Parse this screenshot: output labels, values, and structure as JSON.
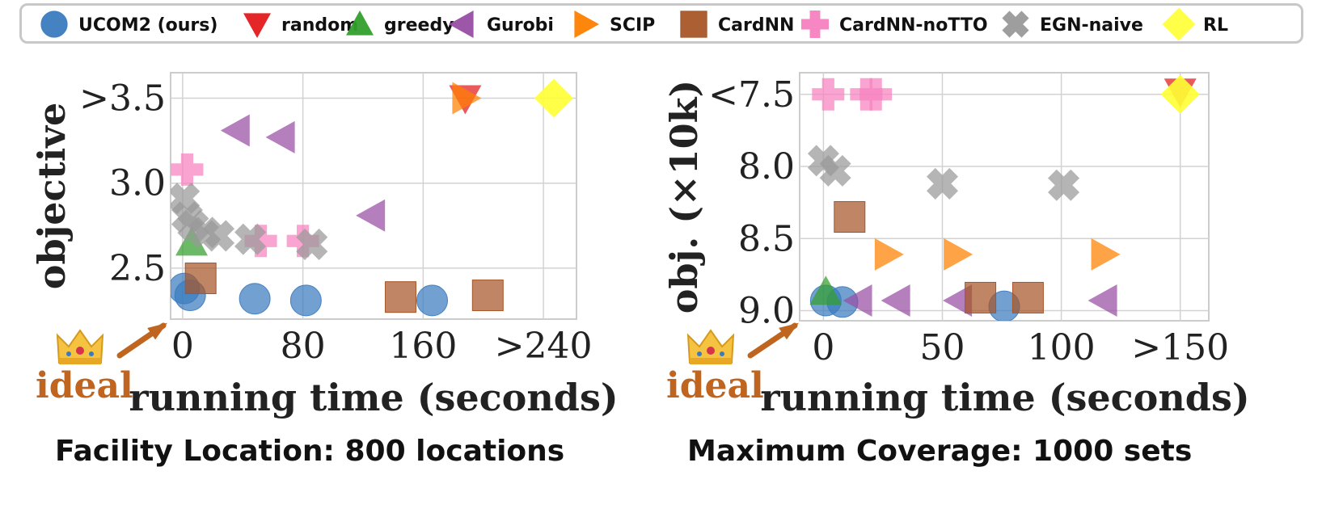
{
  "legend": [
    {
      "key": "ucom2",
      "label": "UCOM2 (ours)",
      "marker": "circle",
      "color": "#3a7bbf"
    },
    {
      "key": "random",
      "label": "random",
      "marker": "triangle-down",
      "color": "#e31a1c"
    },
    {
      "key": "greedy",
      "label": "greedy",
      "marker": "triangle-up",
      "color": "#33a02c"
    },
    {
      "key": "gurobi",
      "label": "Gurobi",
      "marker": "triangle-left",
      "color": "#984ea3"
    },
    {
      "key": "scip",
      "label": "SCIP",
      "marker": "triangle-right",
      "color": "#ff7f00"
    },
    {
      "key": "cardnn",
      "label": "CardNN",
      "marker": "square",
      "color": "#a65628"
    },
    {
      "key": "cardnn_nott",
      "label": "CardNN-noTTO",
      "marker": "plus",
      "color": "#f781bf"
    },
    {
      "key": "egn",
      "label": "EGN-naive",
      "marker": "x",
      "color": "#999999"
    },
    {
      "key": "rl",
      "label": "RL",
      "marker": "diamond",
      "color": "#ffff33"
    }
  ],
  "chart_data": [
    {
      "type": "scatter",
      "caption": "Facility Location: 800 locations",
      "xlabel": "running time (seconds)",
      "ylabel": "objective",
      "ideal_label": "ideal",
      "xlim": [
        -8,
        262
      ],
      "ylim": [
        2.2,
        3.65
      ],
      "y_inverted": false,
      "xticks": [
        0,
        80,
        160,
        240
      ],
      "xtick_labels": [
        "0",
        "80",
        "160",
        ">240"
      ],
      "yticks": [
        2.5,
        3.0,
        3.5
      ],
      "ytick_labels": [
        "2.5",
        "3.0",
        ">3.5"
      ],
      "grid": true,
      "series": [
        {
          "key": "ucom2",
          "points": [
            [
              1,
              2.38
            ],
            [
              5,
              2.34
            ],
            [
              48,
              2.32
            ],
            [
              82,
              2.31
            ],
            [
              166,
              2.31
            ]
          ]
        },
        {
          "key": "random",
          "points": [
            [
              188,
              3.5
            ]
          ]
        },
        {
          "key": "greedy",
          "points": [
            [
              6,
              2.65
            ]
          ]
        },
        {
          "key": "gurobi",
          "points": [
            [
              36,
              3.31
            ],
            [
              66,
              3.27
            ],
            [
              126,
              2.81
            ]
          ]
        },
        {
          "key": "scip",
          "points": [
            [
              188,
              3.5
            ]
          ]
        },
        {
          "key": "cardnn",
          "points": [
            [
              12,
              2.44
            ],
            [
              145,
              2.33
            ],
            [
              203,
              2.34
            ]
          ]
        },
        {
          "key": "cardnn_nott",
          "points": [
            [
              3,
              3.08
            ],
            [
              52,
              2.66
            ],
            [
              80,
              2.66
            ]
          ]
        },
        {
          "key": "egn",
          "points": [
            [
              1,
              2.91
            ],
            [
              3,
              2.8
            ],
            [
              7,
              2.75
            ],
            [
              15,
              2.71
            ],
            [
              24,
              2.69
            ],
            [
              45,
              2.67
            ],
            [
              86,
              2.64
            ]
          ]
        },
        {
          "key": "rl",
          "points": [
            [
              247,
              3.5
            ]
          ]
        }
      ]
    },
    {
      "type": "scatter",
      "caption": "Maximum Coverage: 1000 sets",
      "xlabel": "running time (seconds)",
      "ylabel": "obj. (×10k)",
      "ideal_label": "ideal",
      "xlim": [
        -10,
        162
      ],
      "ylim": [
        7.35,
        9.07
      ],
      "y_inverted": true,
      "xticks": [
        0,
        50,
        100,
        150
      ],
      "xtick_labels": [
        "0",
        "50",
        "100",
        ">150"
      ],
      "yticks": [
        7.5,
        8.0,
        8.5,
        9.0
      ],
      "ytick_labels": [
        "<7.5",
        "8.0",
        "8.5",
        "9.0"
      ],
      "grid": true,
      "series": [
        {
          "key": "ucom2",
          "points": [
            [
              1,
              8.93
            ],
            [
              8,
              8.94
            ],
            [
              76,
              8.97
            ]
          ]
        },
        {
          "key": "random",
          "points": [
            [
              150,
              7.48
            ]
          ]
        },
        {
          "key": "greedy",
          "points": [
            [
              1,
              8.87
            ]
          ]
        },
        {
          "key": "gurobi",
          "points": [
            [
              15,
              8.93
            ],
            [
              31,
              8.93
            ],
            [
              57,
              8.93
            ],
            [
              118,
              8.93
            ]
          ]
        },
        {
          "key": "scip",
          "points": [
            [
              27,
              8.61
            ],
            [
              56,
              8.61
            ],
            [
              118,
              8.61
            ]
          ]
        },
        {
          "key": "cardnn",
          "points": [
            [
              11,
              8.35
            ],
            [
              66,
              8.91
            ],
            [
              86,
              8.91
            ]
          ]
        },
        {
          "key": "cardnn_nott",
          "points": [
            [
              2,
              7.5
            ],
            [
              18,
              7.5
            ],
            [
              22,
              7.5
            ]
          ]
        },
        {
          "key": "egn",
          "points": [
            [
              0,
              7.96
            ],
            [
              5,
              8.03
            ],
            [
              50,
              8.12
            ],
            [
              101,
              8.13
            ]
          ]
        },
        {
          "key": "rl",
          "points": [
            [
              150,
              7.5
            ]
          ]
        }
      ]
    }
  ]
}
